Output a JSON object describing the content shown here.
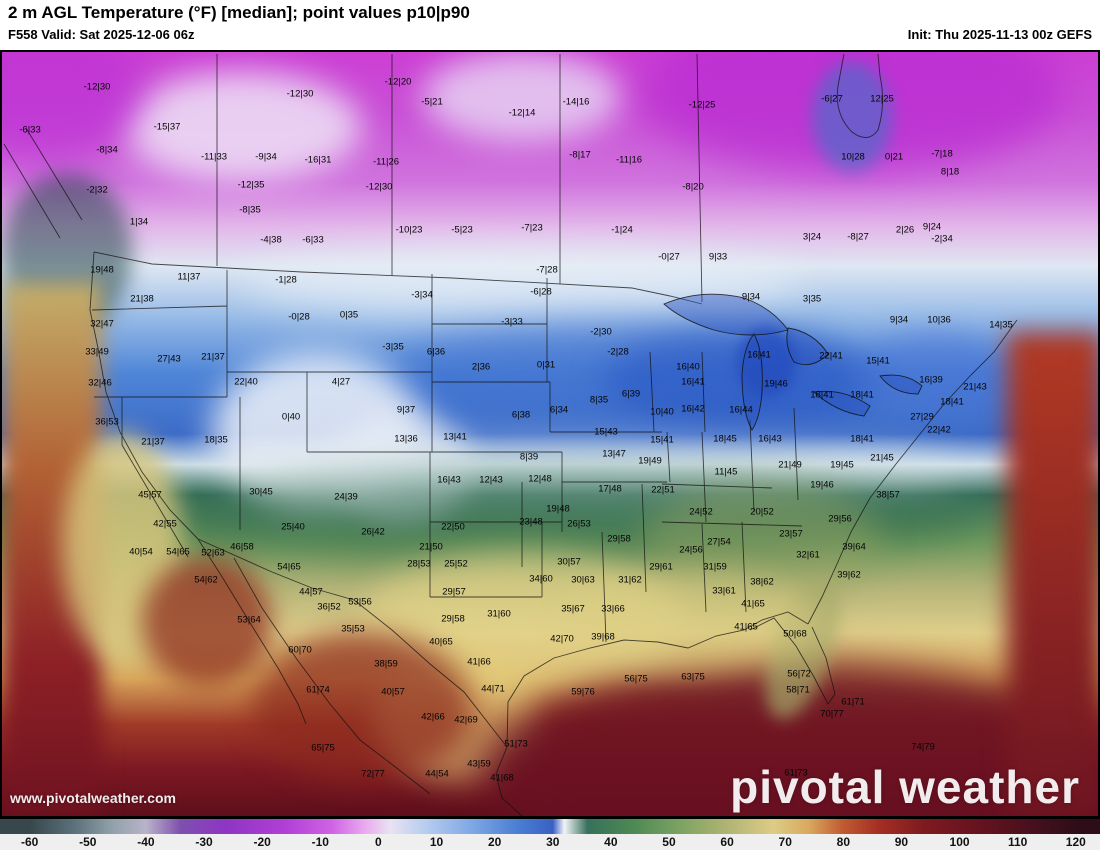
{
  "header": {
    "title": "2 m AGL Temperature (°F) [median]; point values p10|p90",
    "valid": "F558 Valid: Sat 2025-12-06 06z",
    "init": "Init: Thu 2025-11-13 00z GEFS"
  },
  "watermarks": {
    "left": "www.pivotalweather.com",
    "right": "pivotal weather"
  },
  "colorbar": {
    "min": -60,
    "max": 120,
    "ticks": [
      -60,
      -50,
      -40,
      -30,
      -20,
      -10,
      0,
      10,
      20,
      30,
      40,
      50,
      60,
      70,
      80,
      90,
      100,
      110,
      120
    ],
    "gradient": [
      {
        "v": -60,
        "c": "#37474c"
      },
      {
        "v": -52,
        "c": "#5d737d"
      },
      {
        "v": -46,
        "c": "#8fa0a8"
      },
      {
        "v": -40,
        "c": "#b9b3c9"
      },
      {
        "v": -34,
        "c": "#7e4fae"
      },
      {
        "v": -26,
        "c": "#8f35c4"
      },
      {
        "v": -16,
        "c": "#b13fd6"
      },
      {
        "v": -8,
        "c": "#cf63e4"
      },
      {
        "v": -2,
        "c": "#eaaef0"
      },
      {
        "v": 2,
        "c": "#e9e2f2"
      },
      {
        "v": 8,
        "c": "#b7cdf0"
      },
      {
        "v": 16,
        "c": "#7fa8e4"
      },
      {
        "v": 24,
        "c": "#4a7ed2"
      },
      {
        "v": 30,
        "c": "#3a60c4"
      },
      {
        "v": 32,
        "c": "#f2f4f6"
      },
      {
        "v": 36,
        "c": "#37705c"
      },
      {
        "v": 44,
        "c": "#4d8a54"
      },
      {
        "v": 52,
        "c": "#7da362"
      },
      {
        "v": 60,
        "c": "#b0b473"
      },
      {
        "v": 68,
        "c": "#ddcc85"
      },
      {
        "v": 74,
        "c": "#d9a95e"
      },
      {
        "v": 80,
        "c": "#c05a31"
      },
      {
        "v": 86,
        "c": "#a52f23"
      },
      {
        "v": 94,
        "c": "#7d1a20"
      },
      {
        "v": 104,
        "c": "#64121f"
      },
      {
        "v": 112,
        "c": "#49101e"
      },
      {
        "v": 120,
        "c": "#2f0d18"
      }
    ]
  },
  "map_points": [
    [
      95,
      85,
      "-12|30"
    ],
    [
      298,
      92,
      "-12|30"
    ],
    [
      396,
      80,
      "-12|20"
    ],
    [
      430,
      100,
      "-5|21"
    ],
    [
      520,
      111,
      "-12|14"
    ],
    [
      574,
      100,
      "-14|16"
    ],
    [
      700,
      103,
      "-12|25"
    ],
    [
      830,
      97,
      "-6|27"
    ],
    [
      880,
      97,
      "12|25"
    ],
    [
      28,
      128,
      "-6|33"
    ],
    [
      165,
      125,
      "-15|37"
    ],
    [
      105,
      148,
      "-8|34"
    ],
    [
      212,
      155,
      "-11|33"
    ],
    [
      264,
      155,
      "-9|34"
    ],
    [
      316,
      158,
      "-16|31"
    ],
    [
      384,
      160,
      "-11|26"
    ],
    [
      578,
      153,
      "-8|17"
    ],
    [
      627,
      158,
      "-11|16"
    ],
    [
      851,
      155,
      "10|28"
    ],
    [
      892,
      155,
      "0|21"
    ],
    [
      940,
      152,
      "-7|18"
    ],
    [
      948,
      170,
      "8|18"
    ],
    [
      95,
      188,
      "-2|32"
    ],
    [
      249,
      183,
      "-12|35"
    ],
    [
      377,
      185,
      "-12|30"
    ],
    [
      691,
      185,
      "-8|20"
    ],
    [
      248,
      208,
      "-8|35"
    ],
    [
      137,
      220,
      "1|34"
    ],
    [
      407,
      228,
      "-10|23"
    ],
    [
      460,
      228,
      "-5|23"
    ],
    [
      530,
      226,
      "-7|23"
    ],
    [
      620,
      228,
      "-1|24"
    ],
    [
      269,
      238,
      "-4|38"
    ],
    [
      311,
      238,
      "-6|33"
    ],
    [
      810,
      235,
      "3|24"
    ],
    [
      856,
      235,
      "-8|27"
    ],
    [
      903,
      228,
      "2|26"
    ],
    [
      930,
      225,
      "9|24"
    ],
    [
      940,
      237,
      "-2|34"
    ],
    [
      100,
      268,
      "19|48"
    ],
    [
      187,
      275,
      "11|37"
    ],
    [
      545,
      268,
      "-7|28"
    ],
    [
      667,
      255,
      "-0|27"
    ],
    [
      716,
      255,
      "9|33"
    ],
    [
      140,
      297,
      "21|38"
    ],
    [
      284,
      278,
      "-1|28"
    ],
    [
      420,
      293,
      "-3|34"
    ],
    [
      539,
      290,
      "-6|28"
    ],
    [
      749,
      295,
      "9|34"
    ],
    [
      810,
      297,
      "3|35"
    ],
    [
      100,
      322,
      "32|47"
    ],
    [
      297,
      315,
      "-0|28"
    ],
    [
      347,
      313,
      "0|35"
    ],
    [
      510,
      320,
      "-3|33"
    ],
    [
      599,
      330,
      "-2|30"
    ],
    [
      897,
      318,
      "9|34"
    ],
    [
      937,
      318,
      "10|36"
    ],
    [
      999,
      323,
      "14|35"
    ],
    [
      95,
      350,
      "33|49"
    ],
    [
      167,
      357,
      "27|43"
    ],
    [
      211,
      355,
      "21|37"
    ],
    [
      391,
      345,
      "-3|35"
    ],
    [
      434,
      350,
      "6|36"
    ],
    [
      616,
      350,
      "-2|28"
    ],
    [
      757,
      353,
      "16|41"
    ],
    [
      829,
      354,
      "22|41"
    ],
    [
      876,
      359,
      "15|41"
    ],
    [
      686,
      365,
      "16|40"
    ],
    [
      98,
      381,
      "32|46"
    ],
    [
      244,
      380,
      "22|40"
    ],
    [
      339,
      380,
      "4|27"
    ],
    [
      479,
      365,
      "2|36"
    ],
    [
      544,
      363,
      "0|31"
    ],
    [
      629,
      392,
      "6|39"
    ],
    [
      691,
      380,
      "16|41"
    ],
    [
      774,
      382,
      "19|46"
    ],
    [
      929,
      378,
      "16|39"
    ],
    [
      973,
      385,
      "21|43"
    ],
    [
      820,
      393,
      "18|41"
    ],
    [
      860,
      393,
      "18|41"
    ],
    [
      105,
      420,
      "36|53"
    ],
    [
      289,
      415,
      "0|40"
    ],
    [
      404,
      408,
      "9|37"
    ],
    [
      519,
      413,
      "6|38"
    ],
    [
      557,
      408,
      "6|34"
    ],
    [
      597,
      398,
      "8|35"
    ],
    [
      660,
      410,
      "10|40"
    ],
    [
      691,
      407,
      "16|42"
    ],
    [
      739,
      408,
      "16|44"
    ],
    [
      920,
      415,
      "27|29"
    ],
    [
      950,
      400,
      "18|41"
    ],
    [
      151,
      440,
      "21|37"
    ],
    [
      214,
      438,
      "18|35"
    ],
    [
      404,
      437,
      "13|36"
    ],
    [
      453,
      435,
      "13|41"
    ],
    [
      527,
      455,
      "8|39"
    ],
    [
      604,
      430,
      "15|43"
    ],
    [
      660,
      438,
      "15|41"
    ],
    [
      723,
      437,
      "18|45"
    ],
    [
      768,
      437,
      "16|43"
    ],
    [
      860,
      437,
      "18|41"
    ],
    [
      937,
      428,
      "22|42"
    ],
    [
      612,
      452,
      "13|47"
    ],
    [
      648,
      459,
      "19|49"
    ],
    [
      724,
      470,
      "11|45"
    ],
    [
      788,
      463,
      "21|49"
    ],
    [
      840,
      463,
      "19|45"
    ],
    [
      880,
      456,
      "21|45"
    ],
    [
      489,
      478,
      "12|43"
    ],
    [
      538,
      477,
      "12|48"
    ],
    [
      447,
      478,
      "16|43"
    ],
    [
      608,
      487,
      "17|48"
    ],
    [
      661,
      488,
      "22|51"
    ],
    [
      820,
      483,
      "19|46"
    ],
    [
      886,
      493,
      "38|57"
    ],
    [
      148,
      493,
      "45|57"
    ],
    [
      259,
      490,
      "30|45"
    ],
    [
      344,
      495,
      "24|39"
    ],
    [
      556,
      507,
      "19|48"
    ],
    [
      163,
      522,
      "42|55"
    ],
    [
      291,
      525,
      "25|40"
    ],
    [
      371,
      530,
      "26|42"
    ],
    [
      451,
      525,
      "22|50"
    ],
    [
      529,
      520,
      "23|48"
    ],
    [
      577,
      522,
      "26|53"
    ],
    [
      617,
      537,
      "29|58"
    ],
    [
      699,
      510,
      "24|52"
    ],
    [
      760,
      510,
      "20|52"
    ],
    [
      838,
      517,
      "29|56"
    ],
    [
      717,
      540,
      "27|54"
    ],
    [
      789,
      532,
      "23|57"
    ],
    [
      139,
      550,
      "40|54"
    ],
    [
      176,
      550,
      "54|65"
    ],
    [
      211,
      551,
      "52|63"
    ],
    [
      240,
      545,
      "46|58"
    ],
    [
      429,
      545,
      "21|50"
    ],
    [
      417,
      562,
      "28|53"
    ],
    [
      454,
      562,
      "25|52"
    ],
    [
      287,
      565,
      "54|65"
    ],
    [
      659,
      565,
      "29|61"
    ],
    [
      689,
      548,
      "24|56"
    ],
    [
      713,
      565,
      "31|59"
    ],
    [
      806,
      553,
      "32|61"
    ],
    [
      852,
      545,
      "39|64"
    ],
    [
      567,
      560,
      "30|57"
    ],
    [
      204,
      578,
      "54|62"
    ],
    [
      309,
      590,
      "44|57"
    ],
    [
      452,
      590,
      "29|57"
    ],
    [
      539,
      577,
      "34|60"
    ],
    [
      581,
      578,
      "30|63"
    ],
    [
      628,
      578,
      "31|62"
    ],
    [
      722,
      589,
      "33|61"
    ],
    [
      760,
      580,
      "38|62"
    ],
    [
      847,
      573,
      "39|62"
    ],
    [
      327,
      605,
      "36|52"
    ],
    [
      358,
      600,
      "53|56"
    ],
    [
      751,
      602,
      "41|65"
    ],
    [
      247,
      618,
      "53|64"
    ],
    [
      351,
      627,
      "35|53"
    ],
    [
      451,
      617,
      "29|58"
    ],
    [
      497,
      612,
      "31|60"
    ],
    [
      571,
      607,
      "35|67"
    ],
    [
      611,
      607,
      "33|66"
    ],
    [
      298,
      648,
      "60|70"
    ],
    [
      384,
      662,
      "38|59"
    ],
    [
      439,
      640,
      "40|65"
    ],
    [
      477,
      660,
      "41|66"
    ],
    [
      560,
      637,
      "42|70"
    ],
    [
      601,
      635,
      "39|68"
    ],
    [
      744,
      625,
      "41|65"
    ],
    [
      793,
      632,
      "50|68"
    ],
    [
      634,
      677,
      "56|75"
    ],
    [
      691,
      675,
      "63|75"
    ],
    [
      797,
      672,
      "56|72"
    ],
    [
      796,
      688,
      "58|71"
    ],
    [
      581,
      690,
      "59|76"
    ],
    [
      491,
      687,
      "44|71"
    ],
    [
      391,
      690,
      "40|57"
    ],
    [
      316,
      688,
      "61|74"
    ],
    [
      431,
      715,
      "42|66"
    ],
    [
      464,
      718,
      "42|69"
    ],
    [
      514,
      742,
      "51|73"
    ],
    [
      830,
      712,
      "70|77"
    ],
    [
      851,
      700,
      "61|71"
    ],
    [
      921,
      745,
      "74|79"
    ],
    [
      794,
      771,
      "61|73"
    ],
    [
      371,
      772,
      "72|77"
    ],
    [
      435,
      772,
      "44|54"
    ],
    [
      477,
      762,
      "43|59"
    ],
    [
      500,
      776,
      "41|68"
    ],
    [
      321,
      746,
      "65|75"
    ]
  ]
}
